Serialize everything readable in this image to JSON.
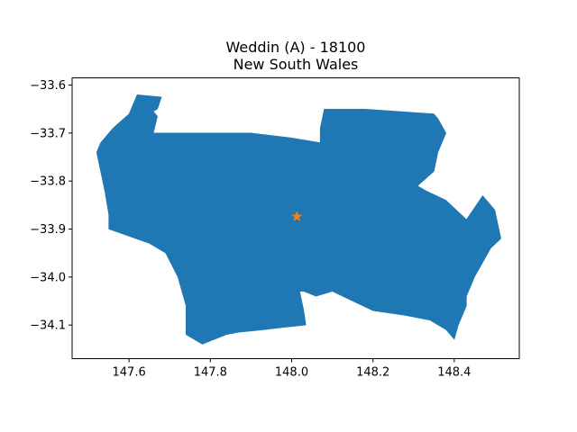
{
  "figure": {
    "title_line1": "Weddin (A) - 18100",
    "title_line2": "New South Wales",
    "region_color": "#1f77b4",
    "marker_color": "#ff7f0e",
    "marker_icon": "star-icon"
  },
  "chart_data": {
    "type": "map",
    "title": "Weddin (A) - 18100\nNew South Wales",
    "xlim": [
      147.46,
      148.56
    ],
    "ylim": [
      -34.17,
      -33.585
    ],
    "x_ticks": [
      "147.6",
      "147.8",
      "148.0",
      "148.2",
      "148.4"
    ],
    "y_ticks": [
      "−33.6",
      "−33.7",
      "−33.8",
      "−33.9",
      "−34.0",
      "−34.1"
    ],
    "centroid": [
      148.013,
      -33.874
    ],
    "region_outline": [
      [
        147.53,
        -33.72
      ],
      [
        147.56,
        -33.69
      ],
      [
        147.6,
        -33.66
      ],
      [
        147.62,
        -33.62
      ],
      [
        147.68,
        -33.625
      ],
      [
        147.67,
        -33.65
      ],
      [
        147.66,
        -33.655
      ],
      [
        147.67,
        -33.665
      ],
      [
        147.66,
        -33.7
      ],
      [
        147.75,
        -33.7
      ],
      [
        147.9,
        -33.7
      ],
      [
        148.0,
        -33.71
      ],
      [
        148.07,
        -33.72
      ],
      [
        148.07,
        -33.69
      ],
      [
        148.08,
        -33.65
      ],
      [
        148.18,
        -33.65
      ],
      [
        148.35,
        -33.66
      ],
      [
        148.36,
        -33.67
      ],
      [
        148.38,
        -33.7
      ],
      [
        148.36,
        -33.74
      ],
      [
        148.35,
        -33.78
      ],
      [
        148.31,
        -33.81
      ],
      [
        148.33,
        -33.82
      ],
      [
        148.38,
        -33.84
      ],
      [
        148.43,
        -33.88
      ],
      [
        148.47,
        -33.83
      ],
      [
        148.5,
        -33.86
      ],
      [
        148.515,
        -33.92
      ],
      [
        148.49,
        -33.94
      ],
      [
        148.47,
        -33.97
      ],
      [
        148.45,
        -34.0
      ],
      [
        148.43,
        -34.04
      ],
      [
        148.43,
        -34.06
      ],
      [
        148.41,
        -34.1
      ],
      [
        148.4,
        -34.13
      ],
      [
        148.38,
        -34.11
      ],
      [
        148.34,
        -34.09
      ],
      [
        148.28,
        -34.08
      ],
      [
        148.2,
        -34.07
      ],
      [
        148.15,
        -34.05
      ],
      [
        148.1,
        -34.03
      ],
      [
        148.06,
        -34.04
      ],
      [
        148.03,
        -34.03
      ],
      [
        148.02,
        -34.03
      ],
      [
        148.03,
        -34.07
      ],
      [
        148.035,
        -34.1
      ],
      [
        147.98,
        -34.105
      ],
      [
        147.93,
        -34.11
      ],
      [
        147.87,
        -34.115
      ],
      [
        147.84,
        -34.12
      ],
      [
        147.78,
        -34.14
      ],
      [
        147.74,
        -34.12
      ],
      [
        147.74,
        -34.06
      ],
      [
        147.72,
        -34.0
      ],
      [
        147.69,
        -33.95
      ],
      [
        147.65,
        -33.93
      ],
      [
        147.55,
        -33.9
      ],
      [
        147.55,
        -33.87
      ],
      [
        147.54,
        -33.82
      ],
      [
        147.53,
        -33.78
      ],
      [
        147.52,
        -33.74
      ]
    ]
  }
}
